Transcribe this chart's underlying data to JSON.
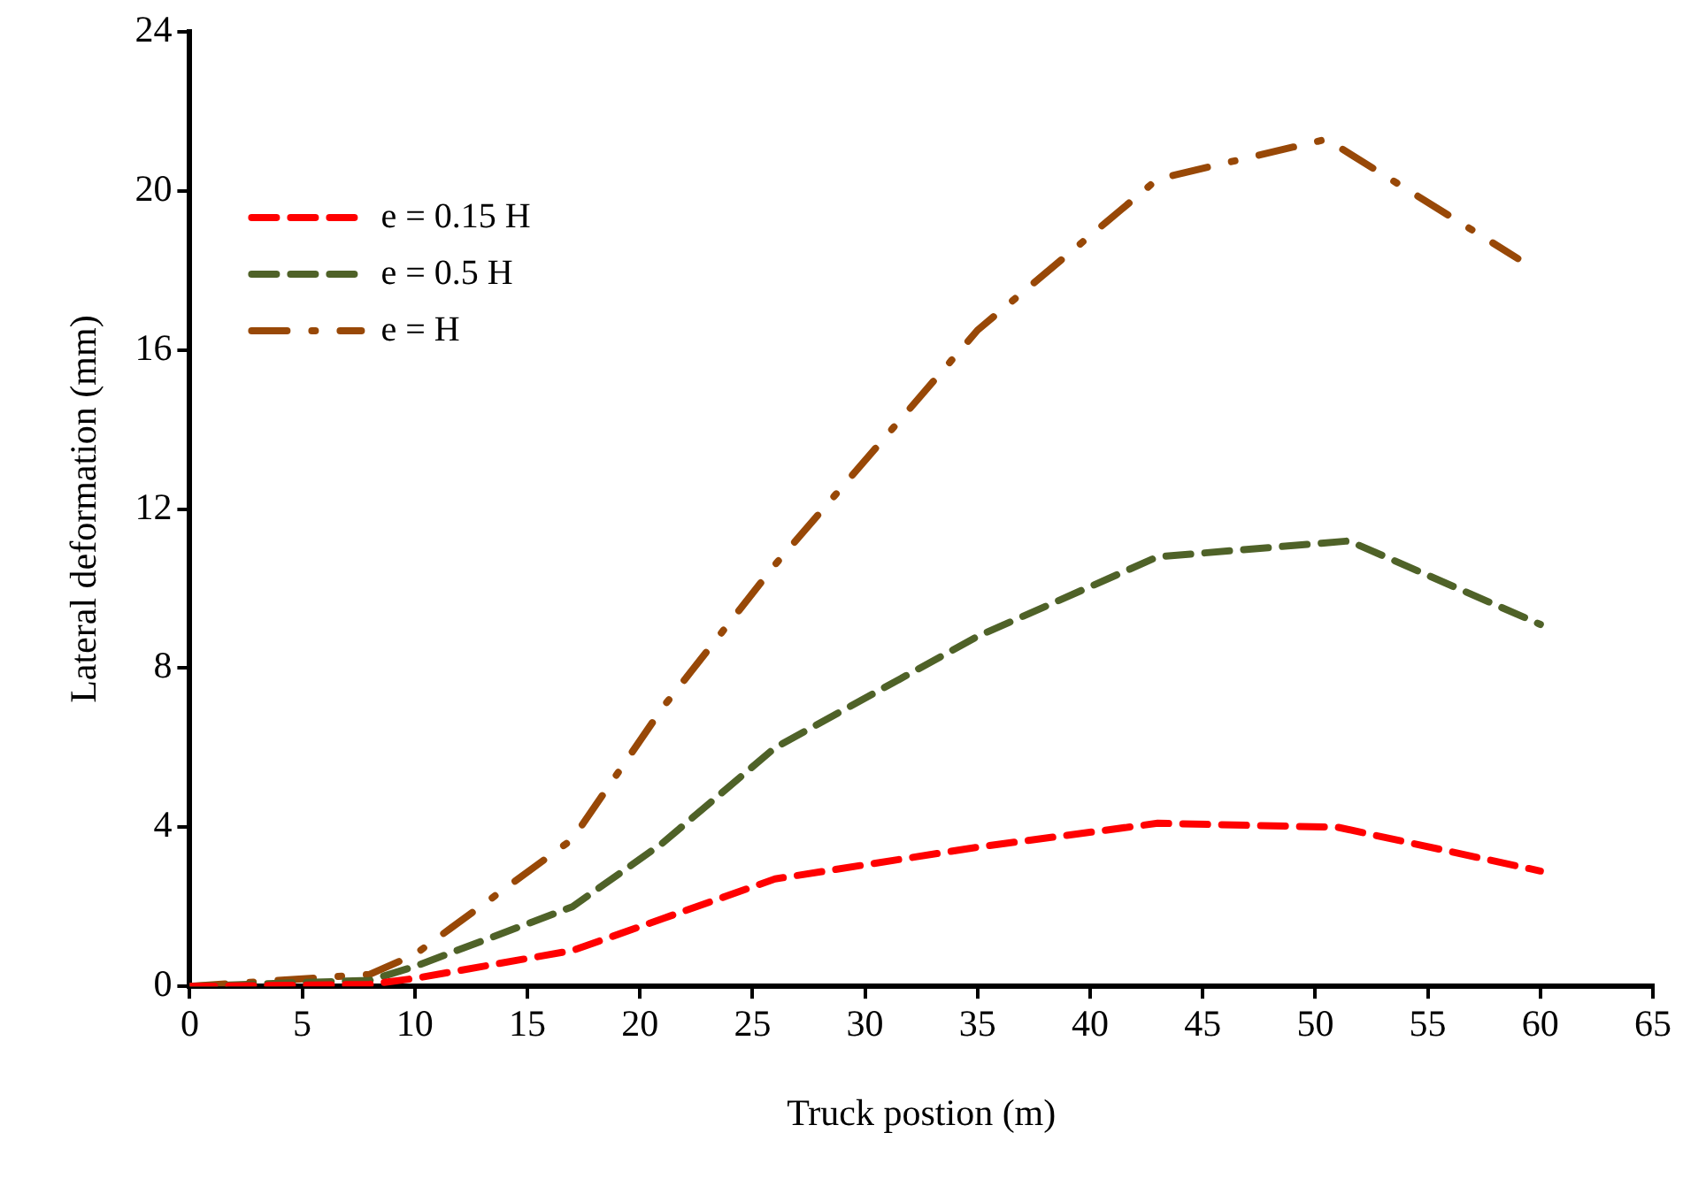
{
  "chart_data": {
    "type": "line",
    "xlabel": "Truck postion (m)",
    "ylabel": "Lateral deformation (mm)",
    "xlim": [
      0,
      65
    ],
    "xticks": [
      0,
      5,
      10,
      15,
      20,
      25,
      30,
      35,
      40,
      45,
      50,
      55,
      60,
      65
    ],
    "ylim": [
      0,
      24
    ],
    "yticks": [
      0,
      4,
      8,
      12,
      16,
      20,
      24
    ],
    "grid": false,
    "legend": "top left",
    "marker": "none",
    "series": [
      {
        "name": "e = 0.15 H",
        "color": "#ff0000",
        "line_style": "dashed",
        "x": [
          0,
          8,
          10,
          17,
          21,
          26,
          35,
          43,
          51,
          60
        ],
        "values": [
          0,
          0.05,
          0.2,
          0.9,
          1.7,
          2.7,
          3.5,
          4.1,
          4.0,
          2.9
        ]
      },
      {
        "name": "e = 0.5 H",
        "color": "#4f6228",
        "line_style": "dashed",
        "x": [
          0,
          8,
          10,
          17,
          21,
          26,
          35,
          43,
          51.5,
          60
        ],
        "values": [
          0,
          0.15,
          0.5,
          2.0,
          3.6,
          6.0,
          8.8,
          10.8,
          11.2,
          9.1
        ]
      },
      {
        "name": "e = H",
        "color": "#984807",
        "line_style": "dashdot",
        "x": [
          0,
          8,
          10,
          17,
          21,
          26,
          35,
          43,
          50.5,
          59
        ],
        "values": [
          0,
          0.3,
          0.8,
          3.7,
          7.0,
          10.6,
          16.5,
          20.3,
          21.3,
          18.3
        ]
      }
    ]
  }
}
